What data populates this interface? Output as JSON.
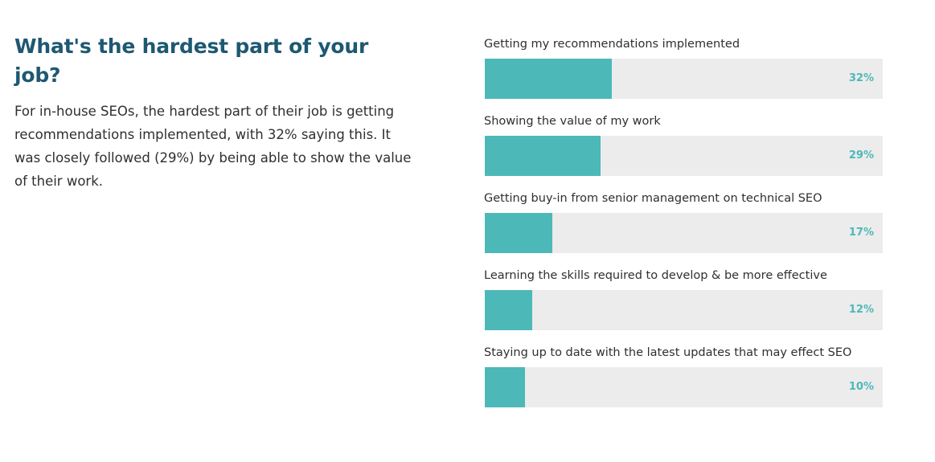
{
  "intro": {
    "title": "What's the hardest part of your job?",
    "description": "For in-house SEOs, the hardest part of their job is getting recommendations implemented, with 32% saying this. It was closely followed (29%) by being able to show the value of their work."
  },
  "colors": {
    "title": "#1e5872",
    "bar_fill": "#4db8b8",
    "bar_track": "#ececec",
    "value_text": "#4db8b8"
  },
  "chart_data": {
    "type": "bar",
    "orientation": "horizontal",
    "xlim": [
      0,
      100
    ],
    "categories": [
      "Getting my recommendations implemented",
      "Showing the value of my work",
      "Getting buy-in from senior management on technical SEO",
      "Learning the skills required to develop & be more effective",
      "Staying up to date with the latest updates that may effect SEO"
    ],
    "values": [
      32,
      29,
      17,
      12,
      10
    ],
    "value_labels": [
      "32%",
      "29%",
      "17%",
      "12%",
      "10%"
    ]
  }
}
